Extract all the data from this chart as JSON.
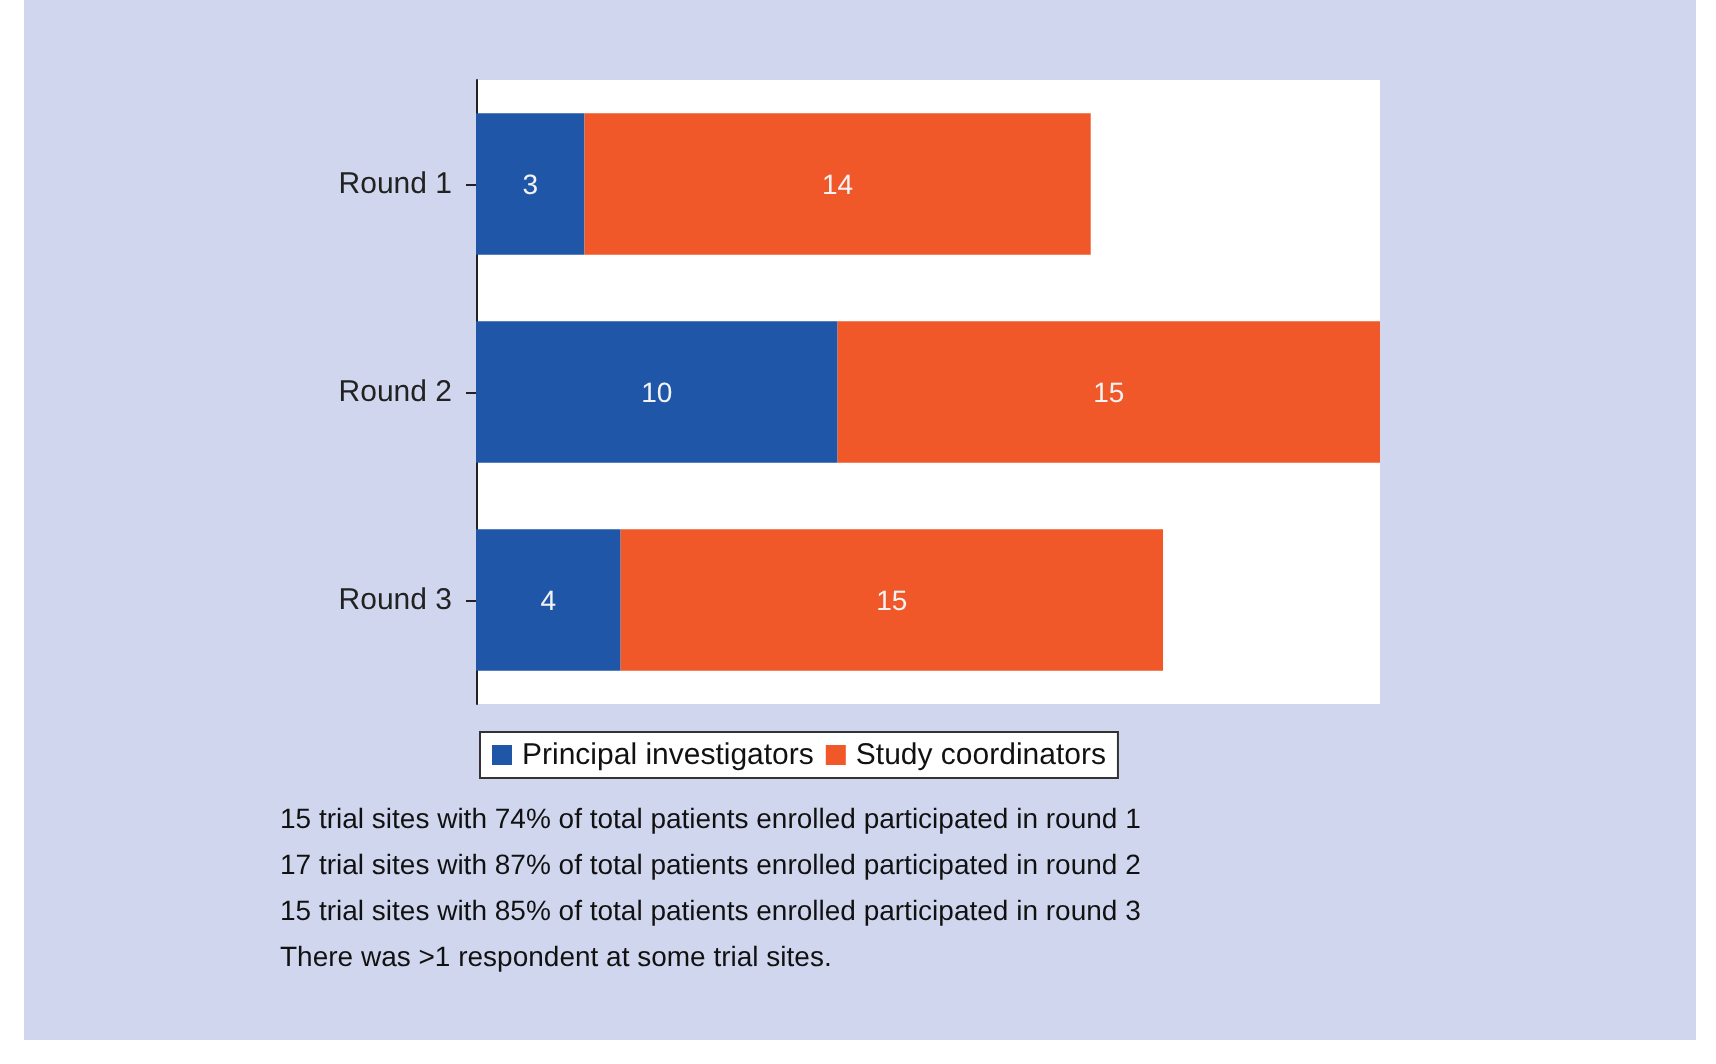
{
  "chart_data": {
    "type": "bar",
    "orientation": "horizontal",
    "stacked": true,
    "categories": [
      "Round 1",
      "Round 2",
      "Round 3"
    ],
    "series": [
      {
        "name": "Principal investigators",
        "color": "#1f56a8",
        "values": [
          3,
          10,
          4
        ]
      },
      {
        "name": "Study coordinators",
        "color": "#f0582a",
        "values": [
          14,
          15,
          15
        ]
      }
    ],
    "data_labels": true,
    "legend": "bottom",
    "grid": false,
    "annotations": [
      "15 trial sites with 74% of total patients enrolled participated in round 1",
      "17 trial sites with 87% of total patients enrolled participated in round 2",
      "15 trial sites with 85% of total patients enrolled participated in round 3",
      "There was >1 respondent at some trial sites."
    ]
  }
}
